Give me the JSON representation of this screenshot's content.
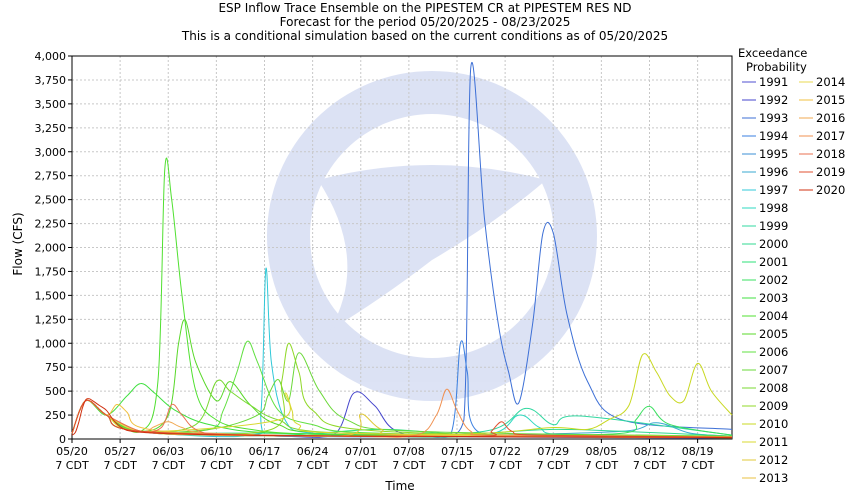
{
  "chart_data": {
    "type": "line",
    "title": "ESP Inflow Trace Ensemble on the PIPESTEM CR at PIPESTEM RES ND",
    "subtitle": "Forecast for the period 05/20/2025 - 08/23/2025",
    "subtitle2": "This is a conditional simulation based on the current conditions as of 05/20/2025",
    "xlabel": "Time",
    "ylabel": "Flow (CFS)",
    "ylim": [
      0,
      4000
    ],
    "xlim_days": [
      0,
      96
    ],
    "y_ticks": [
      "0",
      "250",
      "500",
      "750",
      "1,000",
      "1,250",
      "1,500",
      "1,750",
      "2,000",
      "2,250",
      "2,500",
      "2,750",
      "3,000",
      "3,250",
      "3,500",
      "3,750",
      "4,000"
    ],
    "x_ticks": [
      {
        "day": 0,
        "line1": "05/20",
        "line2": "7 CDT"
      },
      {
        "day": 7,
        "line1": "05/27",
        "line2": "7 CDT"
      },
      {
        "day": 14,
        "line1": "06/03",
        "line2": "7 CDT"
      },
      {
        "day": 21,
        "line1": "06/10",
        "line2": "7 CDT"
      },
      {
        "day": 28,
        "line1": "06/17",
        "line2": "7 CDT"
      },
      {
        "day": 35,
        "line1": "06/24",
        "line2": "7 CDT"
      },
      {
        "day": 42,
        "line1": "07/01",
        "line2": "7 CDT"
      },
      {
        "day": 49,
        "line1": "07/08",
        "line2": "7 CDT"
      },
      {
        "day": 56,
        "line1": "07/15",
        "line2": "7 CDT"
      },
      {
        "day": 63,
        "line1": "07/22",
        "line2": "7 CDT"
      },
      {
        "day": 70,
        "line1": "07/29",
        "line2": "7 CDT"
      },
      {
        "day": 77,
        "line1": "08/05",
        "line2": "7 CDT"
      },
      {
        "day": 84,
        "line1": "08/12",
        "line2": "7 CDT"
      },
      {
        "day": 91,
        "line1": "08/19",
        "line2": "7 CDT"
      }
    ],
    "grid": true,
    "legend_title": [
      "Exceedance",
      "Probability"
    ],
    "legend_placement": "right",
    "series": [
      {
        "name": "1991",
        "color": "#4f4fd0",
        "x": [
          0,
          2,
          5,
          10,
          20,
          40,
          60,
          80,
          96
        ],
        "y": [
          60,
          400,
          250,
          80,
          40,
          25,
          20,
          15,
          10
        ]
      },
      {
        "name": "1992",
        "color": "#4444cc",
        "x": [
          0,
          2,
          5,
          10,
          30,
          38,
          41,
          44,
          48,
          60,
          96
        ],
        "y": [
          60,
          400,
          250,
          80,
          30,
          40,
          480,
          350,
          60,
          30,
          15
        ]
      },
      {
        "name": "1993",
        "color": "#3c6fd6",
        "x": [
          0,
          2,
          5,
          10,
          30,
          50,
          54,
          57,
          58,
          60,
          62,
          63.5,
          65,
          67,
          68.5,
          70,
          72,
          75,
          80,
          96
        ],
        "y": [
          60,
          400,
          250,
          80,
          30,
          25,
          30,
          200,
          3880,
          2300,
          1200,
          700,
          380,
          1200,
          2150,
          2150,
          1300,
          600,
          200,
          100
        ]
      },
      {
        "name": "1994",
        "color": "#3a7fe0",
        "x": [
          0,
          2,
          5,
          10,
          30,
          50,
          55,
          56.5,
          57.5,
          59,
          70,
          96
        ],
        "y": [
          60,
          400,
          250,
          80,
          30,
          25,
          30,
          1000,
          700,
          80,
          40,
          20
        ]
      },
      {
        "name": "1995",
        "color": "#3b8fd6",
        "x": [
          0,
          2,
          5,
          10,
          20,
          40,
          60,
          80,
          96
        ],
        "y": [
          60,
          400,
          250,
          80,
          40,
          30,
          30,
          20,
          15
        ]
      },
      {
        "name": "1996",
        "color": "#3aa8d0",
        "x": [
          0,
          2,
          5,
          10,
          40,
          60,
          80,
          85,
          90,
          96
        ],
        "y": [
          60,
          400,
          250,
          80,
          30,
          40,
          80,
          170,
          60,
          30
        ]
      },
      {
        "name": "1997",
        "color": "#30c8d8",
        "x": [
          0,
          2,
          5,
          10,
          26,
          27.5,
          28.2,
          29,
          31,
          35,
          50,
          96
        ],
        "y": [
          60,
          400,
          250,
          80,
          40,
          300,
          1780,
          800,
          200,
          60,
          30,
          15
        ]
      },
      {
        "name": "1998",
        "color": "#2ed8c0",
        "x": [
          0,
          2,
          5,
          10,
          40,
          60,
          65,
          68,
          72,
          96
        ],
        "y": [
          60,
          400,
          250,
          80,
          30,
          40,
          250,
          120,
          40,
          20
        ]
      },
      {
        "name": "1999",
        "color": "#30d8a0",
        "x": [
          0,
          2,
          5,
          10,
          40,
          60,
          66,
          70,
          74,
          96
        ],
        "y": [
          60,
          400,
          250,
          80,
          30,
          80,
          320,
          150,
          240,
          40
        ]
      },
      {
        "name": "2000",
        "color": "#30d890",
        "x": [
          0,
          2,
          5,
          10,
          30,
          50,
          60,
          70,
          80,
          96
        ],
        "y": [
          60,
          400,
          250,
          80,
          60,
          40,
          60,
          100,
          80,
          30
        ]
      },
      {
        "name": "2001",
        "color": "#2ee078",
        "x": [
          0,
          2,
          5,
          10,
          30,
          45,
          60,
          96
        ],
        "y": [
          60,
          400,
          250,
          80,
          40,
          100,
          40,
          20
        ]
      },
      {
        "name": "2002",
        "color": "#3ae060",
        "x": [
          0,
          2,
          5,
          10,
          30,
          50,
          60,
          80,
          82,
          84,
          87,
          96
        ],
        "y": [
          60,
          400,
          250,
          80,
          40,
          30,
          30,
          60,
          200,
          340,
          150,
          40
        ]
      },
      {
        "name": "2003",
        "color": "#40e040",
        "x": [
          0,
          2,
          5,
          8,
          10,
          12,
          15,
          20,
          30,
          60,
          96
        ],
        "y": [
          60,
          400,
          250,
          450,
          580,
          480,
          300,
          150,
          60,
          30,
          15
        ]
      },
      {
        "name": "2004",
        "color": "#50e030",
        "x": [
          0,
          2,
          5,
          10,
          12.5,
          13.5,
          14.5,
          16,
          18,
          21,
          26,
          35,
          60,
          96
        ],
        "y": [
          60,
          400,
          250,
          80,
          600,
          2820,
          2500,
          1500,
          500,
          200,
          100,
          50,
          30,
          15
        ]
      },
      {
        "name": "2005",
        "color": "#58d828",
        "x": [
          0,
          2,
          5,
          10,
          14,
          15.5,
          16.5,
          18,
          21,
          23,
          26,
          30,
          40,
          96
        ],
        "y": [
          60,
          400,
          250,
          80,
          250,
          1000,
          1240,
          800,
          400,
          600,
          350,
          150,
          60,
          20
        ]
      },
      {
        "name": "2006",
        "color": "#60e040",
        "x": [
          0,
          2,
          5,
          10,
          20,
          22,
          24,
          25.5,
          27,
          30,
          35,
          45,
          96
        ],
        "y": [
          60,
          400,
          250,
          80,
          100,
          300,
          700,
          1020,
          800,
          300,
          150,
          60,
          20
        ]
      },
      {
        "name": "2007",
        "color": "#6ad838",
        "x": [
          0,
          2,
          5,
          10,
          20,
          27,
          28.5,
          30,
          31.5,
          33,
          36,
          40,
          50,
          96
        ],
        "y": [
          60,
          400,
          250,
          80,
          100,
          250,
          450,
          620,
          400,
          900,
          500,
          200,
          80,
          30
        ]
      },
      {
        "name": "2008",
        "color": "#78d830",
        "x": [
          0,
          2,
          5,
          10,
          18,
          21,
          23,
          26,
          30,
          40,
          96
        ],
        "y": [
          60,
          400,
          250,
          80,
          150,
          600,
          500,
          350,
          200,
          60,
          20
        ]
      },
      {
        "name": "2009",
        "color": "#90d828",
        "x": [
          0,
          2,
          5,
          10,
          29,
          30.5,
          31.5,
          33,
          35,
          45,
          96
        ],
        "y": [
          60,
          400,
          250,
          80,
          100,
          600,
          1000,
          700,
          300,
          80,
          20
        ]
      },
      {
        "name": "2010",
        "color": "#c8d820",
        "x": [
          0,
          2,
          5,
          10,
          40,
          60,
          70,
          75,
          78,
          81,
          83,
          85,
          87,
          89,
          91,
          93,
          96
        ],
        "y": [
          60,
          400,
          250,
          80,
          30,
          60,
          120,
          100,
          200,
          350,
          880,
          700,
          450,
          400,
          790,
          500,
          250
        ]
      },
      {
        "name": "2011",
        "color": "#d8d830",
        "x": [
          0,
          2,
          5,
          10,
          30,
          31,
          32,
          33,
          40,
          96
        ],
        "y": [
          60,
          400,
          250,
          80,
          200,
          480,
          300,
          150,
          60,
          25
        ]
      },
      {
        "name": "2012",
        "color": "#e0c838",
        "x": [
          0,
          2,
          5,
          10,
          20,
          40,
          42,
          45,
          50,
          96
        ],
        "y": [
          60,
          400,
          250,
          80,
          60,
          40,
          260,
          100,
          40,
          20
        ]
      },
      {
        "name": "2013",
        "color": "#e8c040",
        "x": [
          0,
          2,
          5,
          10,
          20,
          40,
          60,
          80,
          96
        ],
        "y": [
          60,
          400,
          250,
          80,
          50,
          30,
          40,
          30,
          15
        ]
      },
      {
        "name": "2014",
        "color": "#e8d850",
        "x": [
          0,
          2,
          5,
          10,
          20,
          40,
          60,
          80,
          96
        ],
        "y": [
          60,
          400,
          250,
          80,
          40,
          30,
          30,
          20,
          15
        ]
      },
      {
        "name": "2015",
        "color": "#f0c040",
        "x": [
          0,
          2,
          5,
          6.5,
          8,
          10,
          20,
          40,
          96
        ],
        "y": [
          60,
          400,
          250,
          360,
          280,
          120,
          50,
          30,
          15
        ]
      },
      {
        "name": "2016",
        "color": "#f0a850",
        "x": [
          0,
          2,
          5,
          10,
          12,
          14,
          16,
          20,
          40,
          96
        ],
        "y": [
          60,
          400,
          250,
          80,
          130,
          180,
          120,
          60,
          30,
          15
        ]
      },
      {
        "name": "2017",
        "color": "#f09050",
        "x": [
          0,
          2,
          5,
          10,
          40,
          50,
          53,
          54.5,
          56,
          58,
          62,
          96
        ],
        "y": [
          60,
          400,
          250,
          80,
          30,
          40,
          250,
          520,
          300,
          80,
          40,
          20
        ]
      },
      {
        "name": "2018",
        "color": "#e87050",
        "x": [
          0,
          2,
          5,
          10,
          13,
          14.5,
          16,
          18,
          22,
          40,
          96
        ],
        "y": [
          60,
          400,
          250,
          80,
          120,
          360,
          250,
          100,
          50,
          30,
          15
        ]
      },
      {
        "name": "2019",
        "color": "#e05030",
        "x": [
          0,
          2,
          5,
          10,
          40,
          60,
          61,
          62.5,
          64,
          68,
          96
        ],
        "y": [
          60,
          400,
          250,
          80,
          30,
          30,
          80,
          180,
          80,
          40,
          20
        ]
      },
      {
        "name": "2020",
        "color": "#d03010",
        "x": [
          0,
          0.5,
          1,
          1.5,
          2,
          2.5,
          3,
          4,
          5,
          6,
          7,
          8,
          10,
          14,
          20,
          30,
          40,
          50,
          60,
          70,
          80,
          90,
          96
        ],
        "y": [
          40,
          70,
          180,
          320,
          410,
          420,
          400,
          350,
          300,
          200,
          130,
          90,
          70,
          55,
          45,
          35,
          30,
          28,
          25,
          22,
          20,
          18,
          15
        ]
      }
    ]
  }
}
